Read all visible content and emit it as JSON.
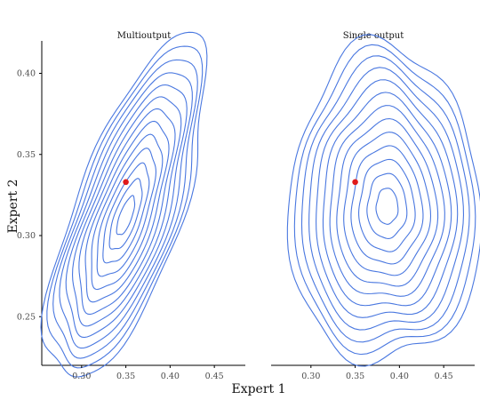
{
  "chart_data": {
    "type": "contour",
    "xlabel": "Expert 1",
    "ylabel": "Expert 2",
    "xlim": [
      0.255,
      0.485
    ],
    "ylim": [
      0.22,
      0.42
    ],
    "x_ticks": [
      0.3,
      0.35,
      0.4,
      0.45
    ],
    "x_tick_labels": [
      "0.30",
      "0.35",
      "0.40",
      "0.45"
    ],
    "y_ticks": [
      0.25,
      0.3,
      0.35,
      0.4
    ],
    "y_tick_labels": [
      "0.25",
      "0.30",
      "0.35",
      "0.40"
    ],
    "contour_color": "#4a78e0",
    "point_color": "#e01b1b",
    "grid": false,
    "panels": [
      {
        "title": "Multioutput",
        "density": {
          "mean": [
            0.352,
            0.315
          ],
          "sd": [
            0.034,
            0.04
          ],
          "correlation": 0.7,
          "mode": [
            0.35,
            0.312
          ],
          "levels": 13
        },
        "point": {
          "x": 0.35,
          "y": 0.333
        }
      },
      {
        "title": "Single output",
        "density": {
          "mean": [
            0.383,
            0.318
          ],
          "sd": [
            0.037,
            0.041
          ],
          "correlation": 0.0,
          "mode": [
            0.386,
            0.318
          ],
          "levels": 13
        },
        "point": {
          "x": 0.35,
          "y": 0.333
        }
      }
    ]
  }
}
